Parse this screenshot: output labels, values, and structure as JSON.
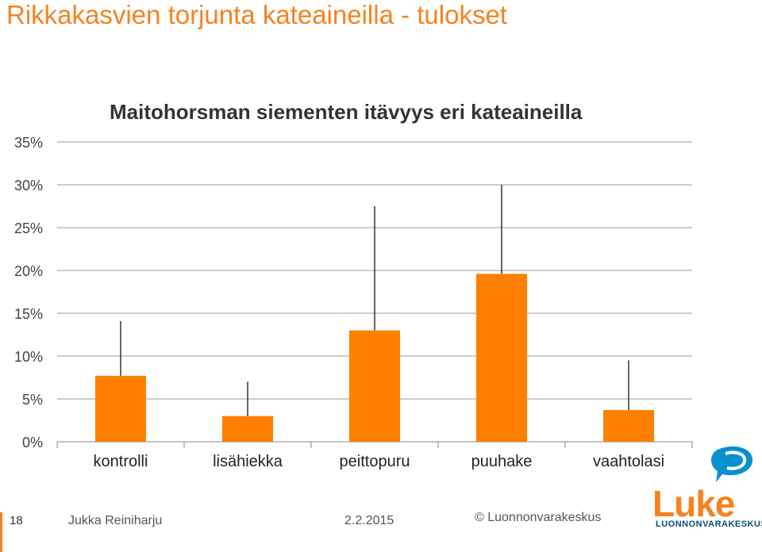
{
  "slide": {
    "title": "Rikkakasvien torjunta kateaineilla - tulokset"
  },
  "chart_data": {
    "type": "bar",
    "title": "Maitohorsman siementen itävyys eri kateaineilla",
    "categories": [
      "kontrolli",
      "lisähiekka",
      "peittopuru",
      "puuhake",
      "vaahtolasi"
    ],
    "values": [
      7.7,
      3.0,
      13.0,
      19.6,
      3.7
    ],
    "error_upper": [
      14.1,
      7.0,
      27.5,
      30.0,
      9.5
    ],
    "ylim": [
      0,
      35
    ],
    "yticks": [
      "0%",
      "5%",
      "10%",
      "15%",
      "20%",
      "25%",
      "30%",
      "35%"
    ],
    "ytick_values": [
      0,
      5,
      10,
      15,
      20,
      25,
      30,
      35
    ],
    "xlabel": "",
    "ylabel": "",
    "grid": true,
    "bar_color": "#ff7f00",
    "error_color": "#333333",
    "grid_color": "#999999"
  },
  "footer": {
    "page": "18",
    "author": "Jukka Reiniharju",
    "date": "2.2.2015",
    "copyright": "© Luonnonvarakeskus"
  },
  "logo": {
    "name": "Luke",
    "subtitle": "LUONNONVARAKESKUS",
    "icon": "luke-logo-icon",
    "accent": "#f5821f",
    "secondary": "#0a4d7a"
  }
}
